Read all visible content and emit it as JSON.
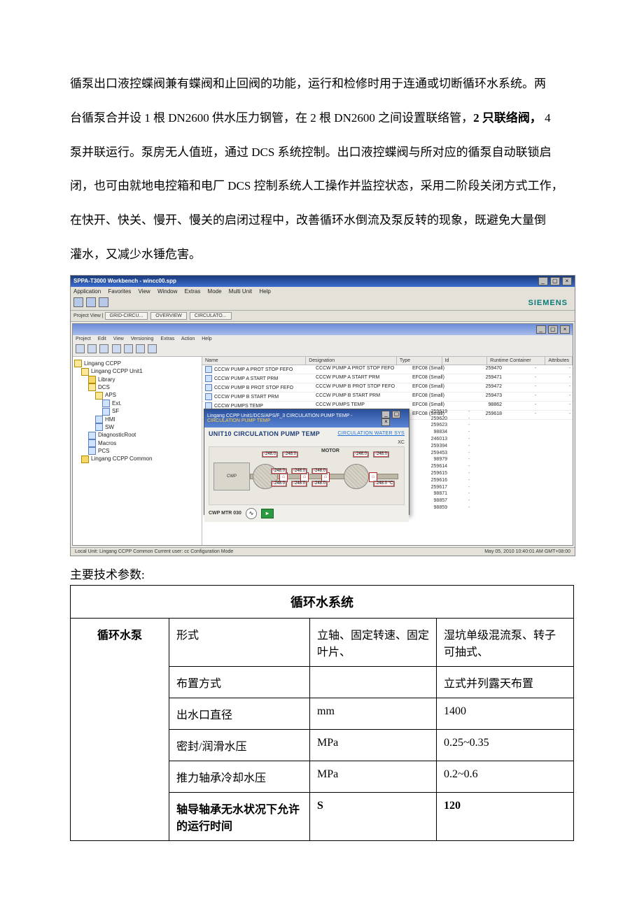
{
  "para": {
    "t1": "循泵出口液控蝶阀兼有蝶阀和止回阀的功能，运行和检修时用于连通或切断循环水系统。两",
    "t2a": "台循泵合并设 1 根 DN2600 供水压力钢管，在 2 根 DN2600 之间设置联络管，",
    "t2b": "2 只联络阀，",
    "t2c": " 4",
    "t3": "泵并联运行。泵房无人值班，通过 DCS 系统控制。出口液控蝶阀与所对应的循泵自动联锁启",
    "t4": "闭，也可由就地电控箱和电厂 DCS 控制系统人工操作并监控状态，采用二阶段关闭方式工作，",
    "t5": "在快开、快关、慢开、慢关的启闭过程中，改善循环水倒流及泵反转的现象，既避免大量倒",
    "t6": "灌水，又减少水锤危害。"
  },
  "app": {
    "title": "SPPA-T3000 Workbench - wincc00.spp",
    "menu": [
      "Application",
      "Favorites",
      "View",
      "Window",
      "Extras",
      "Mode",
      "Multi Unit",
      "Help"
    ],
    "brand": "SIEMENS",
    "crumb_label": "Project View  |",
    "crumbs": [
      "GRID-CIRCU...",
      "OVERVIEW",
      "CIRCULATO..."
    ],
    "sub_menu": [
      "Project",
      "Edit",
      "View",
      "Versioning",
      "Extras",
      "Action",
      "Help"
    ],
    "tree": [
      {
        "indent": 0,
        "type": "folder-open",
        "label": "Lingang CCPP"
      },
      {
        "indent": 1,
        "type": "folder-open",
        "label": "Lingang CCPP Unit1"
      },
      {
        "indent": 2,
        "type": "folder",
        "label": "Library"
      },
      {
        "indent": 2,
        "type": "folder-open",
        "label": "DCS"
      },
      {
        "indent": 3,
        "type": "folder-open",
        "label": "APS"
      },
      {
        "indent": 4,
        "type": "leaf",
        "label": "Ext."
      },
      {
        "indent": 4,
        "type": "leaf",
        "label": "SF"
      },
      {
        "indent": 3,
        "type": "leaf",
        "label": "HMI"
      },
      {
        "indent": 3,
        "type": "leaf",
        "label": "SW"
      },
      {
        "indent": 2,
        "type": "leaf",
        "label": "DiagnosticRoot"
      },
      {
        "indent": 2,
        "type": "leaf",
        "label": "Macros"
      },
      {
        "indent": 2,
        "type": "leaf",
        "label": "PCS"
      },
      {
        "indent": 1,
        "type": "folder",
        "label": "Lingang CCPP Common"
      }
    ],
    "list_headers": [
      "Name",
      "Designation",
      "Type",
      "Id",
      "Runtime Container",
      "Attributes"
    ],
    "list_rows": [
      {
        "name": "CCCW PUMP A PROT STOP FEFO",
        "des": "CCCW PUMP A  PROT STOP FEFO",
        "type": "EFC08 (Small)",
        "id": "259470"
      },
      {
        "name": "CCCW PUMP A START PRM",
        "des": "CCCW PUMP A START PRM",
        "type": "EFC08 (Small)",
        "id": "259471"
      },
      {
        "name": "CCCW PUMP B PROT STOP FEFO",
        "des": "CCCW PUMP B  PROT STOP FEFO",
        "type": "EFC08 (Small)",
        "id": "259472"
      },
      {
        "name": "CCCW PUMP B START PRM",
        "des": "CCCW PUMP B START PRM",
        "type": "EFC08 (Small)",
        "id": "259473"
      },
      {
        "name": "CCCW PUMPS TEMP",
        "des": "CCCW PUMPS TEMP",
        "type": "EFC08 (Small)",
        "id": "98862"
      },
      {
        "name": "CEP A PROT STOP FEFO",
        "des": "CEP A  PROT STOP FEFO",
        "type": "EFC08 (Small)",
        "id": "259618"
      }
    ],
    "extra_ids": [
      "259619",
      "259620",
      "259623",
      "98834",
      "246013",
      "259394",
      "259453",
      "98979",
      "259614",
      "259615",
      "259616",
      "259617",
      "98871",
      "98857",
      "98859"
    ],
    "inner": {
      "title_a": "Lingang CCPP Unit1/DCS/APS/F_3 CIRCULATION PUMP TEMP - ",
      "title_b": "CIRCULATION PUMP TEMP",
      "heading": "UNIT10 CIRCULATION PUMP TEMP",
      "link": "CIRCULATION WATER SYS",
      "xc": "XC",
      "motor": "MOTOR",
      "cwp": "CWP",
      "val": "-248.0",
      "unit": "°C",
      "footer": "CWP MTR 030"
    },
    "status_left": "Local Unit: Lingang CCPP Common   Current user: cc   Configuration Mode",
    "status_right": "May 05, 2010 10:40:01 AM GMT+08:00"
  },
  "table": {
    "caption": "主要技术参数:",
    "title": "循环水系统",
    "rowhead": "循环水泵",
    "rows": [
      {
        "p": "形式",
        "u": "立轴、固定转速、固定叶片、",
        "v": "湿坑单级混流泵、转子可抽式、",
        "bold": false
      },
      {
        "p": "布置方式",
        "u": "",
        "v": "立式并列露天布置",
        "bold": false
      },
      {
        "p": "出水口直径",
        "u": "mm",
        "v": "1400",
        "bold": false
      },
      {
        "p": "密封/润滑水压",
        "u": "MPa",
        "v": "0.25~0.35",
        "bold": false
      },
      {
        "p": "推力轴承冷却水压",
        "u": "MPa",
        "v": "0.2~0.6",
        "bold": false
      },
      {
        "p": "轴导轴承无水状况下允许的运行时间",
        "u": "S",
        "v": "120",
        "bold": true
      }
    ]
  }
}
